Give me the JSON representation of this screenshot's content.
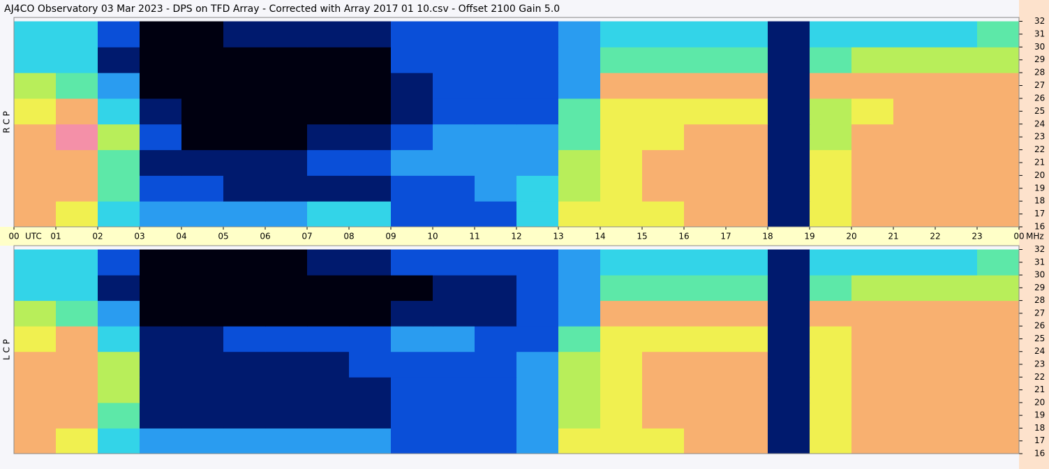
{
  "header": {
    "title": "AJ4CO Observatory  03 Mar 2023  -  DPS on TFD Array  -  Corrected with Array 2017 01 10.csv  -  Offset 2100  Gain 5.0"
  },
  "chart_data": [
    {
      "type": "heatmap",
      "ylabel": "R C P",
      "xlabel": "UTC",
      "y_unit": "MHz",
      "colors": [
        "#000010",
        "#001a6e",
        "#0a4fd8",
        "#2a9cf0",
        "#33d4e8",
        "#5de8a8",
        "#b8ee5a",
        "#f0f050",
        "#f8b070",
        "#f490a8"
      ],
      "x_bins": [
        0,
        1,
        2,
        3,
        4,
        5,
        6,
        7,
        8,
        9,
        10,
        11,
        12,
        13,
        14,
        15,
        16,
        17,
        18,
        19,
        20,
        21,
        22,
        23,
        24
      ],
      "y_bins": [
        16,
        18,
        20,
        22,
        24,
        26,
        28,
        30,
        32
      ],
      "z": [
        [
          8,
          7,
          4,
          3,
          3,
          3,
          3,
          4,
          4,
          2,
          2,
          2,
          4,
          7,
          7,
          7,
          8,
          8,
          1,
          7,
          8,
          8,
          8,
          8
        ],
        [
          8,
          8,
          5,
          2,
          2,
          1,
          1,
          1,
          1,
          2,
          2,
          3,
          4,
          6,
          7,
          8,
          8,
          8,
          1,
          7,
          8,
          8,
          8,
          8
        ],
        [
          8,
          8,
          5,
          1,
          1,
          1,
          1,
          2,
          2,
          3,
          3,
          3,
          3,
          6,
          7,
          8,
          8,
          8,
          1,
          7,
          8,
          8,
          8,
          8
        ],
        [
          8,
          9,
          6,
          2,
          0,
          0,
          0,
          1,
          1,
          2,
          3,
          3,
          3,
          5,
          7,
          7,
          8,
          8,
          1,
          6,
          8,
          8,
          8,
          8
        ],
        [
          7,
          8,
          4,
          1,
          0,
          0,
          0,
          0,
          0,
          1,
          2,
          2,
          2,
          5,
          7,
          7,
          7,
          7,
          1,
          6,
          7,
          8,
          8,
          8
        ],
        [
          6,
          5,
          3,
          0,
          0,
          0,
          0,
          0,
          0,
          1,
          2,
          2,
          2,
          3,
          8,
          8,
          8,
          8,
          1,
          8,
          8,
          8,
          8,
          8
        ],
        [
          4,
          4,
          1,
          0,
          0,
          0,
          0,
          0,
          0,
          2,
          2,
          2,
          2,
          3,
          5,
          5,
          5,
          5,
          1,
          5,
          6,
          6,
          6,
          6
        ],
        [
          4,
          4,
          2,
          0,
          0,
          1,
          1,
          1,
          1,
          2,
          2,
          2,
          2,
          3,
          4,
          4,
          4,
          4,
          1,
          4,
          4,
          4,
          4,
          5
        ]
      ],
      "xlim": [
        0,
        24
      ],
      "xticks": [
        {
          "value": 0,
          "label": "00"
        },
        {
          "value": 1,
          "label": "01"
        },
        {
          "value": 2,
          "label": "02"
        },
        {
          "value": 3,
          "label": "03"
        },
        {
          "value": 4,
          "label": "04"
        },
        {
          "value": 5,
          "label": "05"
        },
        {
          "value": 6,
          "label": "06"
        },
        {
          "value": 7,
          "label": "07"
        },
        {
          "value": 8,
          "label": "08"
        },
        {
          "value": 9,
          "label": "09"
        },
        10,
        11,
        12,
        13,
        14,
        15,
        16,
        17,
        18,
        19,
        20,
        21,
        22,
        23,
        {
          "value": 24,
          "label": "00"
        }
      ],
      "ylim": [
        16,
        32.3
      ],
      "yticks": [
        16,
        17,
        18,
        19,
        20,
        21,
        22,
        23,
        24,
        25,
        26,
        27,
        28,
        29,
        30,
        31,
        32
      ]
    },
    {
      "type": "heatmap",
      "ylabel": "L C P",
      "colors": [
        "#000010",
        "#001a6e",
        "#0a4fd8",
        "#2a9cf0",
        "#33d4e8",
        "#5de8a8",
        "#b8ee5a",
        "#f0f050",
        "#f8b070",
        "#f490a8"
      ],
      "x_bins": [
        0,
        1,
        2,
        3,
        4,
        5,
        6,
        7,
        8,
        9,
        10,
        11,
        12,
        13,
        14,
        15,
        16,
        17,
        18,
        19,
        20,
        21,
        22,
        23,
        24
      ],
      "y_bins": [
        16,
        18,
        20,
        22,
        24,
        26,
        28,
        30,
        32
      ],
      "z": [
        [
          8,
          7,
          4,
          3,
          3,
          3,
          3,
          3,
          3,
          2,
          2,
          2,
          3,
          7,
          7,
          7,
          8,
          8,
          1,
          7,
          8,
          8,
          8,
          8
        ],
        [
          8,
          8,
          5,
          1,
          1,
          1,
          1,
          1,
          1,
          2,
          2,
          2,
          3,
          6,
          7,
          8,
          8,
          8,
          1,
          7,
          8,
          8,
          8,
          8
        ],
        [
          8,
          8,
          6,
          1,
          1,
          1,
          1,
          1,
          1,
          2,
          2,
          2,
          3,
          6,
          7,
          8,
          8,
          8,
          1,
          7,
          8,
          8,
          8,
          8
        ],
        [
          8,
          8,
          6,
          1,
          1,
          1,
          1,
          1,
          2,
          2,
          2,
          2,
          3,
          6,
          7,
          8,
          8,
          8,
          1,
          7,
          8,
          8,
          8,
          8
        ],
        [
          7,
          8,
          4,
          1,
          1,
          2,
          2,
          2,
          2,
          3,
          3,
          2,
          2,
          5,
          7,
          7,
          7,
          7,
          1,
          7,
          8,
          8,
          8,
          8
        ],
        [
          6,
          5,
          3,
          0,
          0,
          0,
          0,
          0,
          0,
          1,
          1,
          1,
          2,
          3,
          8,
          8,
          8,
          8,
          1,
          8,
          8,
          8,
          8,
          8
        ],
        [
          4,
          4,
          1,
          0,
          0,
          0,
          0,
          0,
          0,
          0,
          1,
          1,
          2,
          3,
          5,
          5,
          5,
          5,
          1,
          5,
          6,
          6,
          6,
          6
        ],
        [
          4,
          4,
          2,
          0,
          0,
          0,
          0,
          1,
          1,
          2,
          2,
          2,
          2,
          3,
          4,
          4,
          4,
          4,
          1,
          4,
          4,
          4,
          4,
          5
        ]
      ],
      "xlim": [
        0,
        24
      ],
      "ylim": [
        16,
        32.3
      ],
      "yticks": [
        16,
        17,
        18,
        19,
        20,
        21,
        22,
        23,
        24,
        25,
        26,
        27,
        28,
        29,
        30,
        31,
        32
      ]
    }
  ]
}
